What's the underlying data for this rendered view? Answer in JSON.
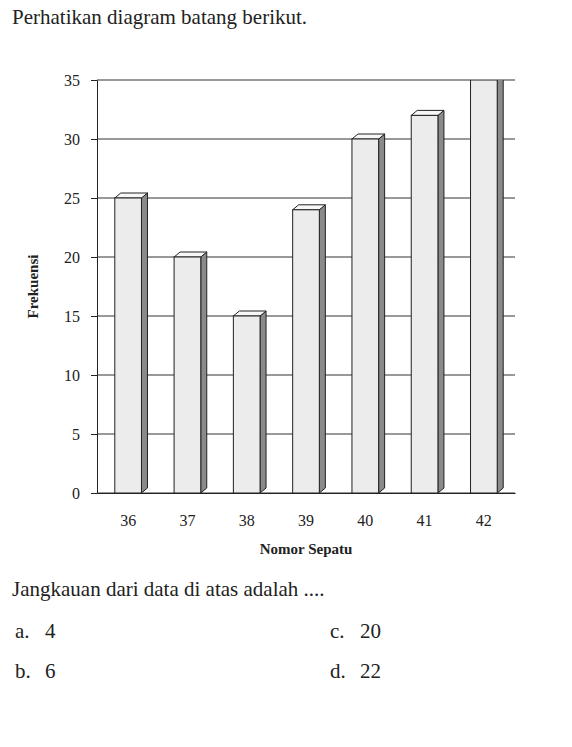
{
  "header": {
    "text": "Perhatikan diagram batang berikut."
  },
  "chart_data": {
    "type": "bar",
    "x_label": "Nomor Sepatu",
    "y_label": "Frekuensi",
    "categories": [
      "36",
      "37",
      "38",
      "39",
      "40",
      "41",
      "42"
    ],
    "values": [
      25,
      20,
      15,
      24,
      30,
      32,
      35
    ],
    "color": "#ececec",
    "ylim": [
      0,
      35
    ],
    "yticks": [
      0,
      5,
      10,
      15,
      20,
      25,
      30,
      35
    ],
    "grid": true
  },
  "question": {
    "text": "Jangkauan dari data di atas adalah ....",
    "options": [
      {
        "letter": "a.",
        "text": "4"
      },
      {
        "letter": "b.",
        "text": "6"
      },
      {
        "letter": "c.",
        "text": "20"
      },
      {
        "letter": "d.",
        "text": "22"
      }
    ]
  }
}
